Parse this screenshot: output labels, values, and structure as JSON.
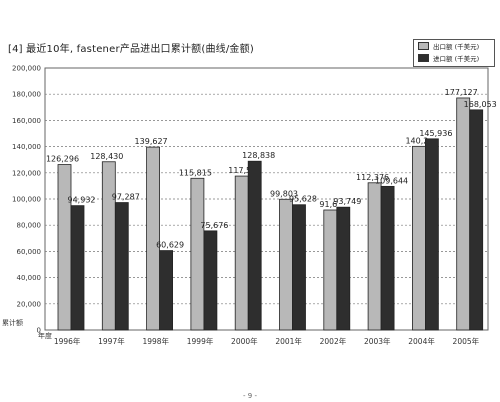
{
  "chart_data": {
    "type": "bar",
    "title": "[4] 最近10年, fastener产品进出口累计额(曲线/金额)",
    "ylabel": "累计额",
    "xlabel": "年度",
    "ylim": [
      0,
      200000
    ],
    "yticks": [
      0,
      20000,
      40000,
      60000,
      80000,
      100000,
      120000,
      140000,
      160000,
      180000,
      200000
    ],
    "ytick_labels": [
      "0",
      "20,000",
      "40,000",
      "60,000",
      "80,000",
      "100,000",
      "120,000",
      "140,000",
      "160,000",
      "180,000",
      "200,000"
    ],
    "categories": [
      "1996年",
      "1997年",
      "1998年",
      "1999年",
      "2000年",
      "2001年",
      "2002年",
      "2003年",
      "2004年",
      "2005年"
    ],
    "series": [
      {
        "name": "出口额 (千美元)",
        "color": "#b8b8b8",
        "values": [
          126296,
          128430,
          139627,
          115815,
          117500,
          99803,
          91600,
          112376,
          140200,
          177127
        ],
        "labels": [
          "126,296",
          "128,430",
          "139,627",
          "115,815",
          "117,5",
          "99,803",
          "91,6",
          "112,376",
          "140,2",
          "177,127"
        ]
      },
      {
        "name": "进口额 (千美元)",
        "color": "#2e2e2e",
        "values": [
          94932,
          97287,
          60629,
          75676,
          128838,
          95628,
          93749,
          109644,
          145936,
          168053
        ],
        "labels": [
          "94,932",
          "97,287",
          "60,629",
          "75,676",
          "128,838",
          "95,628",
          "93,749",
          "109,644",
          "145,936",
          "168,053"
        ]
      }
    ],
    "grid": true,
    "legend_position": "top-right"
  },
  "footer": "- 9 -"
}
